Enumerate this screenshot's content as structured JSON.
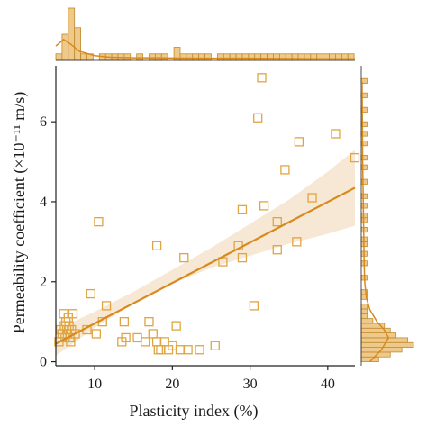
{
  "chart_data": {
    "type": "scatter",
    "title": "",
    "xlabel": "Plasticity index (%)",
    "ylabel": "Permeability coefficient (×10⁻¹¹ m/s)",
    "xlim": [
      5,
      43.5
    ],
    "ylim": [
      -0.1,
      7.4
    ],
    "xticks": [
      10,
      20,
      30,
      40
    ],
    "yticks": [
      0,
      2,
      4,
      6
    ],
    "grid": false,
    "legend": "none",
    "colors": {
      "marker": "#E0A541",
      "line": "#D8891C",
      "band": "#F5E6CF",
      "hist_fill": "#EFC98A",
      "hist_edge": "#C08A30",
      "axis": "#222222"
    },
    "points": [
      {
        "x": 5.4,
        "y": 0.5
      },
      {
        "x": 5.6,
        "y": 0.8
      },
      {
        "x": 5.8,
        "y": 0.7
      },
      {
        "x": 6.0,
        "y": 1.2
      },
      {
        "x": 6.1,
        "y": 0.9
      },
      {
        "x": 6.2,
        "y": 0.6
      },
      {
        "x": 6.3,
        "y": 1.0
      },
      {
        "x": 6.4,
        "y": 0.8
      },
      {
        "x": 6.5,
        "y": 0.7
      },
      {
        "x": 6.6,
        "y": 1.1
      },
      {
        "x": 6.7,
        "y": 0.9
      },
      {
        "x": 6.8,
        "y": 0.6
      },
      {
        "x": 6.9,
        "y": 0.5
      },
      {
        "x": 7.0,
        "y": 0.8
      },
      {
        "x": 7.2,
        "y": 1.2
      },
      {
        "x": 7.5,
        "y": 0.7
      },
      {
        "x": 9.0,
        "y": 0.8
      },
      {
        "x": 9.5,
        "y": 1.7
      },
      {
        "x": 10.2,
        "y": 0.7
      },
      {
        "x": 10.5,
        "y": 3.5
      },
      {
        "x": 11.0,
        "y": 1.0
      },
      {
        "x": 11.5,
        "y": 1.4
      },
      {
        "x": 13.5,
        "y": 0.5
      },
      {
        "x": 13.8,
        "y": 1.0
      },
      {
        "x": 14.0,
        "y": 0.6
      },
      {
        "x": 15.5,
        "y": 0.6
      },
      {
        "x": 16.5,
        "y": 0.5
      },
      {
        "x": 17.0,
        "y": 1.0
      },
      {
        "x": 17.5,
        "y": 0.7
      },
      {
        "x": 18.0,
        "y": 0.5
      },
      {
        "x": 18.2,
        "y": 0.3
      },
      {
        "x": 18.5,
        "y": 0.3
      },
      {
        "x": 18.0,
        "y": 2.9
      },
      {
        "x": 19.0,
        "y": 0.5
      },
      {
        "x": 19.5,
        "y": 0.3
      },
      {
        "x": 20.0,
        "y": 0.4
      },
      {
        "x": 20.5,
        "y": 0.9
      },
      {
        "x": 21.0,
        "y": 0.3
      },
      {
        "x": 21.5,
        "y": 2.6
      },
      {
        "x": 22.0,
        "y": 0.3
      },
      {
        "x": 23.5,
        "y": 0.3
      },
      {
        "x": 25.5,
        "y": 0.4
      },
      {
        "x": 26.5,
        "y": 2.5
      },
      {
        "x": 28.5,
        "y": 2.9
      },
      {
        "x": 29.0,
        "y": 3.8
      },
      {
        "x": 29.0,
        "y": 2.6
      },
      {
        "x": 30.5,
        "y": 1.4
      },
      {
        "x": 31.0,
        "y": 6.1
      },
      {
        "x": 31.5,
        "y": 7.1
      },
      {
        "x": 31.8,
        "y": 3.9
      },
      {
        "x": 33.5,
        "y": 2.8
      },
      {
        "x": 33.5,
        "y": 3.5
      },
      {
        "x": 34.5,
        "y": 4.8
      },
      {
        "x": 36.0,
        "y": 3.0
      },
      {
        "x": 36.3,
        "y": 5.5
      },
      {
        "x": 38.0,
        "y": 4.1
      },
      {
        "x": 41.0,
        "y": 5.7
      },
      {
        "x": 43.5,
        "y": 5.1
      }
    ],
    "regression": {
      "x": [
        5,
        43.5
      ],
      "y": [
        0.45,
        4.35
      ]
    },
    "confidence_band": {
      "x": [
        5,
        10,
        15,
        20,
        25,
        30,
        35,
        40,
        43.5
      ],
      "lower": [
        0.15,
        0.85,
        1.45,
        1.95,
        2.35,
        2.65,
        2.95,
        3.2,
        3.4
      ],
      "upper": [
        0.8,
        1.25,
        1.75,
        2.3,
        2.85,
        3.45,
        4.05,
        4.75,
        5.3
      ]
    },
    "x_hist": {
      "edges_start": 5,
      "bin_width": 0.8,
      "counts": [
        1,
        4,
        8,
        5,
        1,
        1,
        0,
        1,
        1,
        1,
        1,
        1,
        0,
        1,
        0,
        1,
        1,
        1,
        0,
        2,
        1,
        1,
        1,
        1,
        1,
        0,
        1,
        1,
        1,
        1,
        1,
        1,
        1,
        1,
        1,
        1,
        1,
        1,
        1,
        1,
        1,
        1,
        1,
        1,
        1,
        1,
        1,
        1
      ]
    },
    "y_hist": {
      "edges_start": 0,
      "bin_width": 0.12,
      "counts": [
        3,
        5,
        7,
        9,
        8,
        6,
        5,
        4,
        2,
        1,
        1,
        1,
        0,
        1,
        1,
        0,
        0,
        1,
        0,
        0,
        1,
        0,
        1,
        0,
        1,
        1,
        0,
        1,
        0,
        1,
        1,
        0,
        1,
        0,
        1,
        0,
        0,
        1,
        0,
        0,
        1,
        0,
        1,
        0,
        0,
        1,
        0,
        1,
        0,
        1,
        0,
        0,
        1,
        0,
        0,
        1,
        0,
        0,
        1
      ]
    },
    "x_kde": {
      "x": [
        5,
        6,
        7,
        8,
        10,
        12,
        15,
        18,
        20,
        25,
        30,
        35,
        40,
        43.5
      ],
      "density": [
        0.55,
        0.8,
        0.6,
        0.35,
        0.18,
        0.12,
        0.1,
        0.1,
        0.09,
        0.08,
        0.08,
        0.07,
        0.06,
        0.06
      ]
    },
    "y_kde": {
      "y": [
        0,
        0.3,
        0.6,
        0.8,
        1.0,
        1.3,
        1.6,
        2.0,
        2.5,
        3.0,
        3.5,
        4.0,
        5.0,
        6.0,
        7.0
      ],
      "density": [
        0.3,
        0.7,
        0.95,
        0.8,
        0.55,
        0.3,
        0.18,
        0.12,
        0.1,
        0.09,
        0.08,
        0.07,
        0.05,
        0.04,
        0.03
      ]
    }
  }
}
